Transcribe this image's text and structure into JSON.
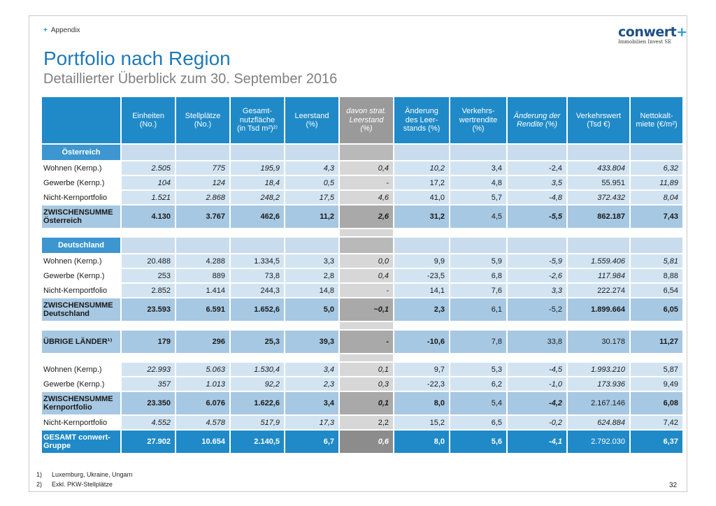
{
  "header": {
    "section": "Appendix",
    "logo_word": "conwert",
    "logo_tag": "Immobilien Invest SE"
  },
  "title": "Portfolio nach Region",
  "subtitle": "Detaillierter Überblick zum 30. September 2016",
  "columns": [
    "Einheiten (No.)",
    "Stellplätze (No.)",
    "Gesamt-nutzfläche (in Tsd m²)²⁾",
    "Leerstand (%)",
    "davon strat. Leerstand (%)",
    "Änderung des Leer-stands (%)",
    "Verkehrs-wertrendite (%)",
    "Änderung der Rendite (%)",
    "Verkehrswert (Tsd €)",
    "Nettokalt-miete (€/m²)"
  ],
  "regions": {
    "austria": "Österreich",
    "germany": "Deutschland"
  },
  "rows": {
    "at_wohnen": [
      "Wohnen (Kernp.)",
      "2.505",
      "775",
      "195,9",
      "4,3",
      "0,4",
      "10,2",
      "3,4",
      "-2,4",
      "433.804",
      "6,32"
    ],
    "at_gewerbe": [
      "Gewerbe (Kernp.)",
      "104",
      "124",
      "18,4",
      "0,5",
      "-",
      "17,2",
      "4,8",
      "3,5",
      "55.951",
      "11,89"
    ],
    "at_nicht": [
      "Nicht-Kernportfolio",
      "1.521",
      "2.868",
      "248,2",
      "17,5",
      "4,6",
      "41,0",
      "5,7",
      "-4,8",
      "372.432",
      "8,04"
    ],
    "at_sum": [
      "ZWISCHENSUMME Österreich",
      "4.130",
      "3.767",
      "462,6",
      "11,2",
      "2,6",
      "31,2",
      "4,5",
      "-5,5",
      "862.187",
      "7,43"
    ],
    "de_wohnen": [
      "Wohnen (Kernp.)",
      "20.488",
      "4.288",
      "1.334,5",
      "3,3",
      "0,0",
      "9,9",
      "5,9",
      "-5,9",
      "1.559.406",
      "5,81"
    ],
    "de_gewerbe": [
      "Gewerbe (Kernp.)",
      "253",
      "889",
      "73,8",
      "2,8",
      "0,4",
      "-23,5",
      "6,8",
      "-2,6",
      "117.984",
      "8,88"
    ],
    "de_nicht": [
      "Nicht-Kernportfolio",
      "2.852",
      "1.414",
      "244,3",
      "14,8",
      "-",
      "14,1",
      "7,6",
      "3,3",
      "222.274",
      "6,54"
    ],
    "de_sum": [
      "ZWISCHENSUMME Deutschland",
      "23.593",
      "6.591",
      "1.652,6",
      "5,0",
      "~0,1",
      "2,3",
      "6,1",
      "-5,2",
      "1.899.664",
      "6,05"
    ],
    "other": [
      "ÜBRIGE LÄNDER¹⁾",
      "179",
      "296",
      "25,3",
      "39,3",
      "-",
      "-10,6",
      "7,8",
      "33,8",
      "30.178",
      "11,27"
    ],
    "k_wohnen": [
      "Wohnen (Kernp.)",
      "22.993",
      "5.063",
      "1.530,4",
      "3,4",
      "0,1",
      "9,7",
      "5,3",
      "-4,5",
      "1.993.210",
      "5,87"
    ],
    "k_gewerbe": [
      "Gewerbe (Kernp.)",
      "357",
      "1.013",
      "92,2",
      "2,3",
      "0,3",
      "-22,3",
      "6,2",
      "-1,0",
      "173.936",
      "9,49"
    ],
    "k_sum": [
      "ZWISCHENSUMME Kernportfolio",
      "23.350",
      "6.076",
      "1.622,6",
      "3,4",
      "0,1",
      "8,0",
      "5,4",
      "-4,2",
      "2.167.146",
      "6,08"
    ],
    "k_nicht": [
      "Nicht-Kernportfolio",
      "4.552",
      "4.578",
      "517,9",
      "17,3",
      "2,2",
      "15,2",
      "6,5",
      "-0,2",
      "624.884",
      "7,42"
    ],
    "total": [
      "GESAMT conwert-Gruppe",
      "27.902",
      "10.654",
      "2.140,5",
      "6,7",
      "0,6",
      "8,0",
      "5,6",
      "-4,1",
      "2.792.030",
      "6,37"
    ]
  },
  "footnotes": [
    {
      "n": "1)",
      "text": "Luxemburg, Ukraine, Ungarn"
    },
    {
      "n": "2)",
      "text": "Exkl. PKW-Stellplätze"
    }
  ],
  "page_number": "32"
}
